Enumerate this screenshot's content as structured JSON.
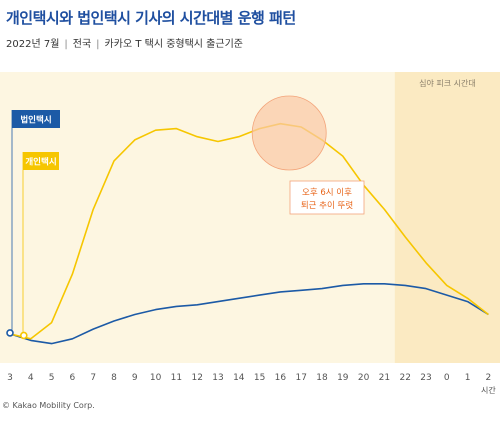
{
  "header": {
    "title": "개인택시와 법인택시 기사의 시간대별 운행 패턴",
    "subtitle_date": "2022년 7월",
    "subtitle_region": "전국",
    "subtitle_basis": "카카오 T 택시 중형택시 출근기준"
  },
  "footer": {
    "credit": "© Kakao Mobility Corp."
  },
  "colors": {
    "background": "#fdf6e1",
    "night_band": "#fbeac2",
    "corporate": "#1c5aa6",
    "individual": "#f6c600",
    "annotation_fill": "#f9c9a6",
    "annotation_stroke": "#f3a47a",
    "annotation_text": "#e8651a"
  },
  "chart_data": {
    "type": "line",
    "x": [
      "3",
      "4",
      "5",
      "6",
      "7",
      "8",
      "9",
      "10",
      "11",
      "12",
      "13",
      "14",
      "15",
      "16",
      "17",
      "18",
      "19",
      "20",
      "21",
      "22",
      "23",
      "0",
      "1",
      "2"
    ],
    "x_axis_unit": "시간",
    "series": [
      {
        "name": "법인택시",
        "color": "#1c5aa6",
        "values": [
          0.8,
          0.4,
          0.2,
          0.5,
          1.1,
          1.6,
          2.0,
          2.3,
          2.5,
          2.6,
          2.8,
          3.0,
          3.2,
          3.4,
          3.5,
          3.6,
          3.8,
          3.9,
          3.9,
          3.8,
          3.6,
          3.2,
          2.8,
          2.0
        ]
      },
      {
        "name": "개인택시",
        "color": "#f6c600",
        "values": [
          0.8,
          0.5,
          1.5,
          4.5,
          8.5,
          11.5,
          12.8,
          13.4,
          13.5,
          13.0,
          12.7,
          13.0,
          13.5,
          13.8,
          13.6,
          12.8,
          11.8,
          10.0,
          8.5,
          6.8,
          5.2,
          3.8,
          3.0,
          2.0
        ]
      }
    ],
    "night_band": {
      "from": "22",
      "to": "2",
      "label": "심야 피크 시간대"
    },
    "annotation": {
      "at": "17",
      "lines": [
        "오후 6시 이후",
        "퇴근 추이 뚜렷"
      ]
    },
    "ylim": [
      -1,
      17
    ]
  }
}
